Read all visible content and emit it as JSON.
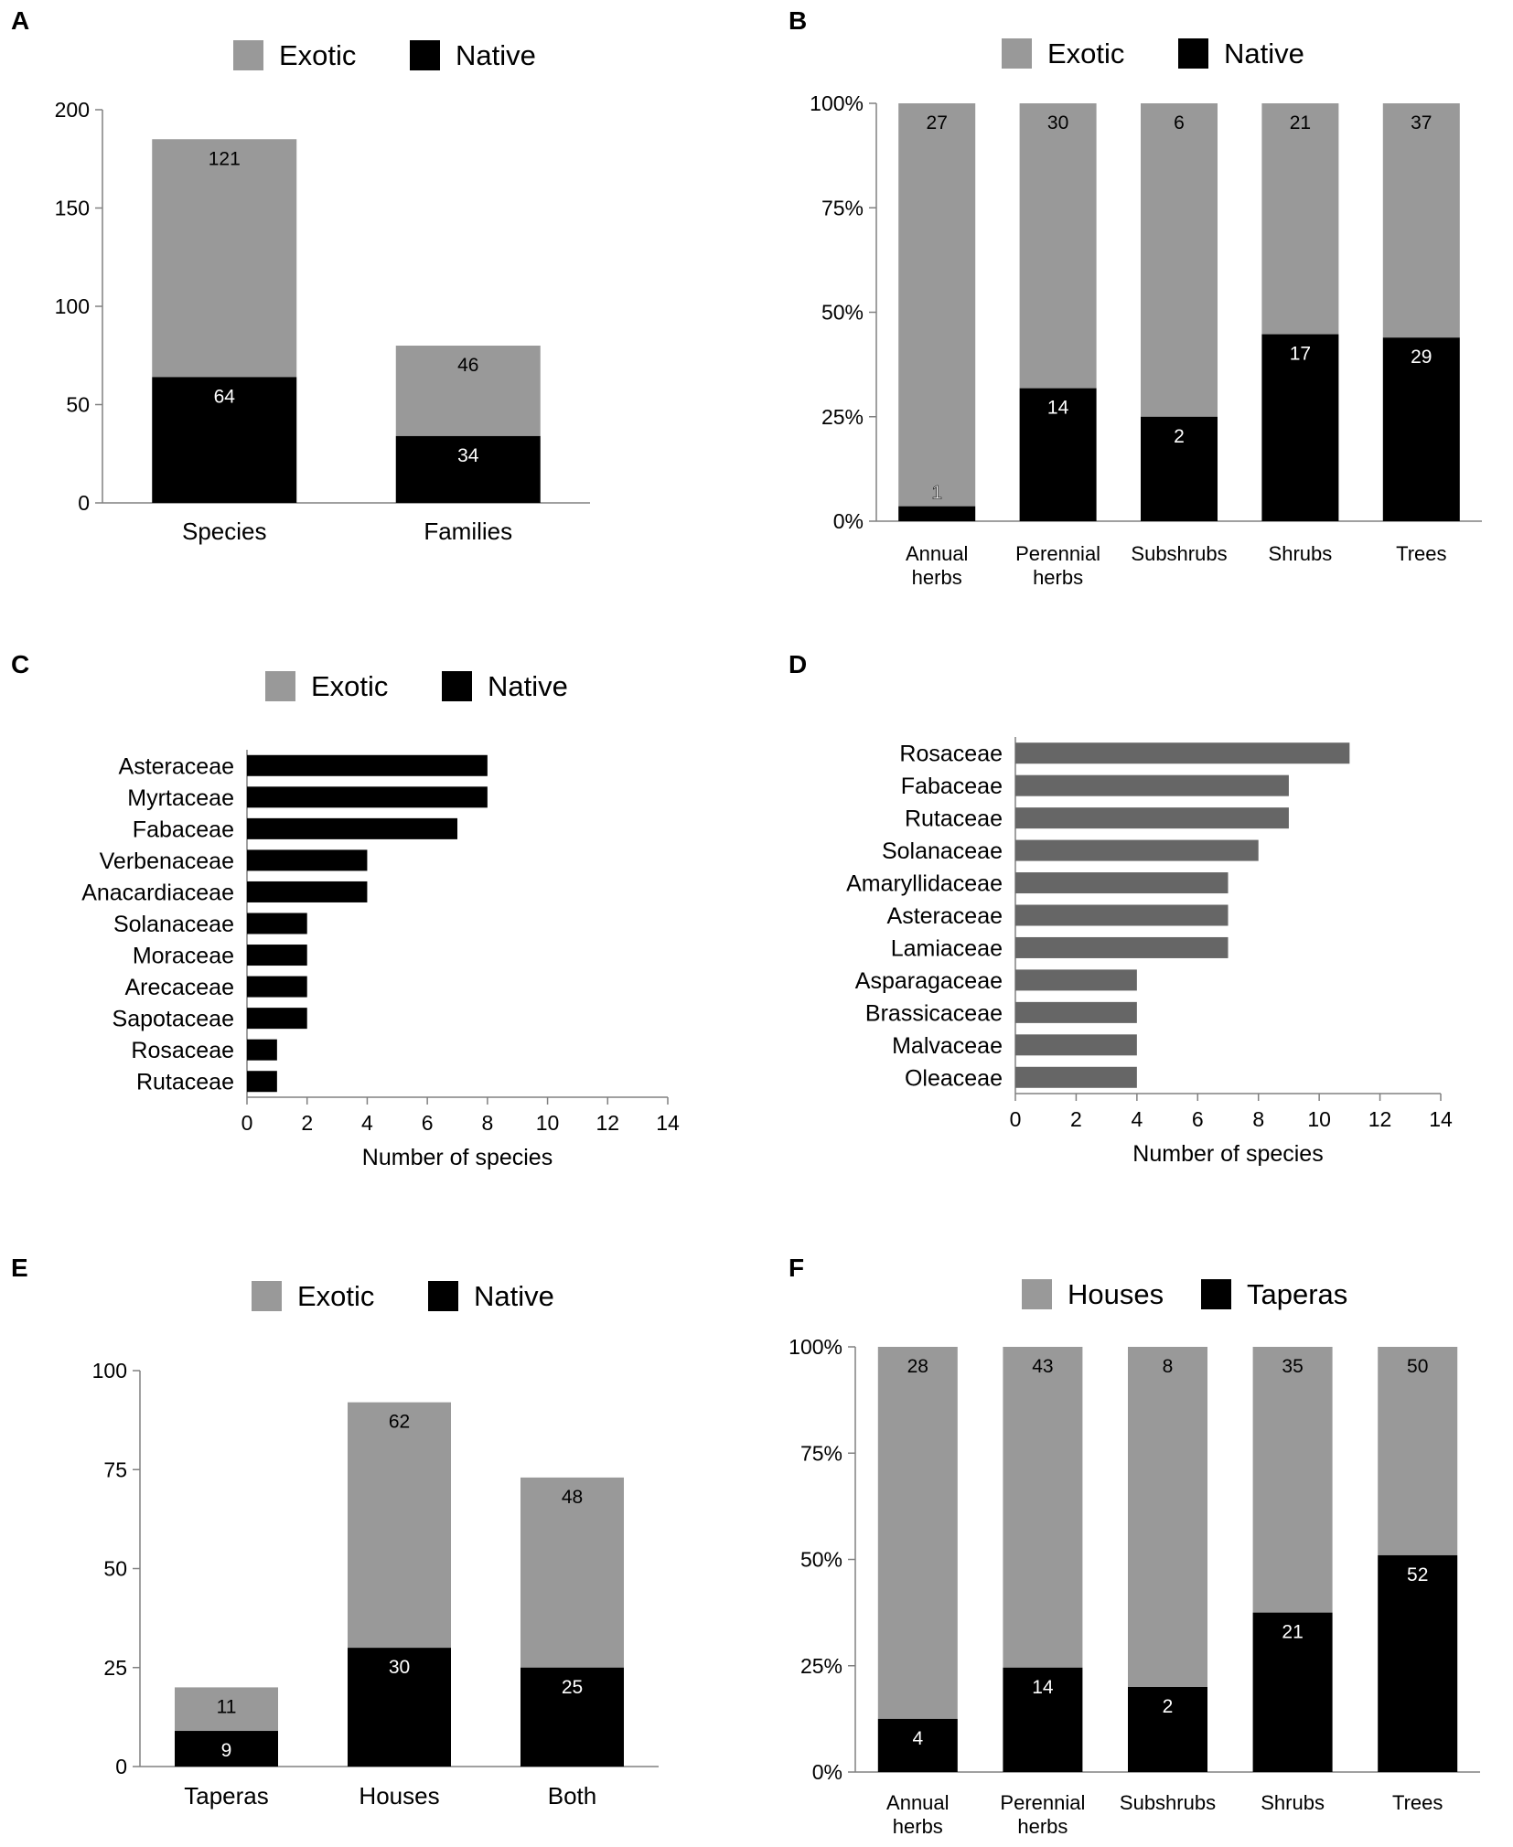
{
  "colors": {
    "exotic": "#999999",
    "native": "#000000",
    "houses": "#999999",
    "taperas": "#000000",
    "family_bar_native": "#000000",
    "family_bar_exotic": "#666666"
  },
  "chart_data": [
    {
      "panel": "A",
      "type": "bar",
      "stacked": true,
      "legend": [
        "Exotic",
        "Native"
      ],
      "categories": [
        "Species",
        "Families"
      ],
      "series": [
        {
          "name": "Native",
          "values": [
            64,
            34
          ]
        },
        {
          "name": "Exotic",
          "values": [
            121,
            46
          ]
        }
      ],
      "ylim": [
        0,
        200
      ],
      "yticks": [
        "0",
        "50",
        "100",
        "150",
        "200"
      ],
      "ytick_values": [
        0,
        50,
        100,
        150,
        200
      ]
    },
    {
      "panel": "B",
      "type": "bar",
      "stacked": true,
      "percent": true,
      "legend": [
        "Exotic",
        "Native"
      ],
      "categories": [
        [
          "Annual",
          "herbs"
        ],
        [
          "Perennial",
          "herbs"
        ],
        [
          "Subshrubs"
        ],
        [
          "Shrubs"
        ],
        [
          "Trees"
        ]
      ],
      "series": [
        {
          "name": "Native",
          "values": [
            1,
            14,
            2,
            17,
            29
          ]
        },
        {
          "name": "Exotic",
          "values": [
            27,
            30,
            6,
            21,
            37
          ]
        }
      ],
      "yticks": [
        "0%",
        "25%",
        "50%",
        "75%",
        "100%"
      ],
      "ytick_values": [
        0,
        25,
        50,
        75,
        100
      ]
    },
    {
      "panel": "C",
      "type": "bar",
      "orientation": "horizontal",
      "legend": [
        "Exotic",
        "Native"
      ],
      "series_name": "Native",
      "categories": [
        "Asteraceae",
        "Myrtaceae",
        "Fabaceae",
        "Verbenaceae",
        "Anacardiaceae",
        "Solanaceae",
        "Moraceae",
        "Arecaceae",
        "Sapotaceae",
        "Rosaceae",
        "Rutaceae"
      ],
      "values": [
        8,
        8,
        7,
        4,
        4,
        2,
        2,
        2,
        2,
        1,
        1
      ],
      "xlim": [
        0,
        14
      ],
      "xticks": [
        "0",
        "2",
        "4",
        "6",
        "8",
        "10",
        "12",
        "14"
      ],
      "xtick_values": [
        0,
        2,
        4,
        6,
        8,
        10,
        12,
        14
      ],
      "xlabel": "Number of species"
    },
    {
      "panel": "D",
      "type": "bar",
      "orientation": "horizontal",
      "series_name": "Exotic",
      "categories": [
        "Rosaceae",
        "Fabaceae",
        "Rutaceae",
        "Solanaceae",
        "Amaryllidaceae",
        "Asteraceae",
        "Lamiaceae",
        "Asparagaceae",
        "Brassicaceae",
        "Malvaceae",
        "Oleaceae"
      ],
      "values": [
        11,
        9,
        9,
        8,
        7,
        7,
        7,
        4,
        4,
        4,
        4
      ],
      "xlim": [
        0,
        14
      ],
      "xticks": [
        "0",
        "2",
        "4",
        "6",
        "8",
        "10",
        "12",
        "14"
      ],
      "xtick_values": [
        0,
        2,
        4,
        6,
        8,
        10,
        12,
        14
      ],
      "xlabel": "Number of species"
    },
    {
      "panel": "E",
      "type": "bar",
      "stacked": true,
      "legend": [
        "Exotic",
        "Native"
      ],
      "categories": [
        "Taperas",
        "Houses",
        "Both"
      ],
      "series": [
        {
          "name": "Native",
          "values": [
            9,
            30,
            25
          ]
        },
        {
          "name": "Exotic",
          "values": [
            11,
            62,
            48
          ]
        }
      ],
      "ylim": [
        0,
        100
      ],
      "yticks": [
        "0",
        "25",
        "50",
        "75",
        "100"
      ],
      "ytick_values": [
        0,
        25,
        50,
        75,
        100
      ]
    },
    {
      "panel": "F",
      "type": "bar",
      "stacked": true,
      "percent": true,
      "legend": [
        "Houses",
        "Taperas"
      ],
      "categories": [
        [
          "Annual",
          "herbs"
        ],
        [
          "Perennial",
          "herbs"
        ],
        [
          "Subshrubs"
        ],
        [
          "Shrubs"
        ],
        [
          "Trees"
        ]
      ],
      "series": [
        {
          "name": "Taperas",
          "values": [
            4,
            14,
            2,
            21,
            52
          ]
        },
        {
          "name": "Houses",
          "values": [
            28,
            43,
            8,
            35,
            50
          ]
        }
      ],
      "yticks": [
        "0%",
        "25%",
        "50%",
        "75%",
        "100%"
      ],
      "ytick_values": [
        0,
        25,
        50,
        75,
        100
      ]
    }
  ]
}
